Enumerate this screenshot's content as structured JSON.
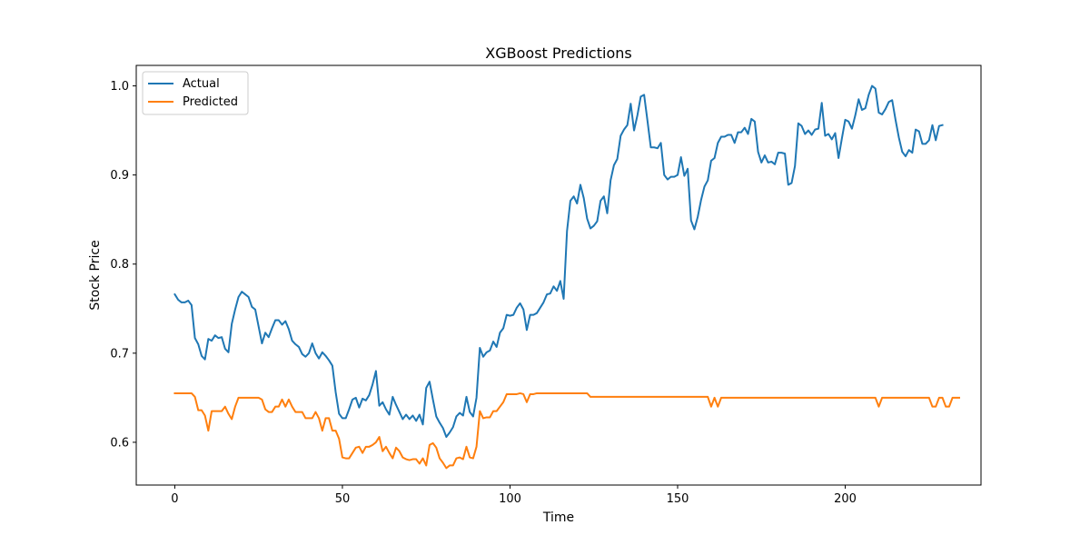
{
  "chart_data": {
    "type": "line",
    "title": "XGBoost Predictions",
    "xlabel": "Time",
    "ylabel": "Stock Price",
    "xlim": [
      -11.5,
      240.5
    ],
    "ylim": [
      0.552,
      1.023
    ],
    "xticks": [
      0,
      50,
      100,
      150,
      200
    ],
    "yticks": [
      0.6,
      0.7,
      0.8,
      0.9,
      1.0
    ],
    "xtick_labels": [
      "0",
      "50",
      "100",
      "150",
      "200"
    ],
    "ytick_labels": [
      "0.6",
      "0.7",
      "0.8",
      "0.9",
      "1.0"
    ],
    "grid": false,
    "legend_position": "top-left",
    "series": [
      {
        "name": "Actual",
        "color": "#1f77b4",
        "x_start": 0,
        "values": [
          0.766,
          0.76,
          0.757,
          0.757,
          0.759,
          0.754,
          0.717,
          0.71,
          0.697,
          0.693,
          0.716,
          0.714,
          0.72,
          0.717,
          0.718,
          0.705,
          0.701,
          0.733,
          0.749,
          0.763,
          0.769,
          0.766,
          0.763,
          0.752,
          0.749,
          0.73,
          0.711,
          0.723,
          0.718,
          0.728,
          0.737,
          0.737,
          0.732,
          0.736,
          0.727,
          0.714,
          0.71,
          0.707,
          0.699,
          0.696,
          0.7,
          0.711,
          0.7,
          0.694,
          0.701,
          0.697,
          0.692,
          0.686,
          0.656,
          0.632,
          0.627,
          0.627,
          0.637,
          0.648,
          0.65,
          0.639,
          0.649,
          0.647,
          0.653,
          0.665,
          0.68,
          0.641,
          0.645,
          0.637,
          0.631,
          0.651,
          0.642,
          0.634,
          0.626,
          0.631,
          0.626,
          0.63,
          0.624,
          0.631,
          0.62,
          0.661,
          0.668,
          0.648,
          0.629,
          0.622,
          0.616,
          0.606,
          0.611,
          0.617,
          0.629,
          0.633,
          0.63,
          0.651,
          0.634,
          0.629,
          0.65,
          0.706,
          0.696,
          0.701,
          0.703,
          0.713,
          0.707,
          0.723,
          0.728,
          0.743,
          0.742,
          0.743,
          0.751,
          0.756,
          0.749,
          0.726,
          0.743,
          0.743,
          0.745,
          0.751,
          0.757,
          0.766,
          0.767,
          0.775,
          0.77,
          0.781,
          0.761,
          0.837,
          0.871,
          0.876,
          0.868,
          0.889,
          0.874,
          0.851,
          0.84,
          0.843,
          0.848,
          0.871,
          0.876,
          0.857,
          0.894,
          0.911,
          0.918,
          0.944,
          0.951,
          0.956,
          0.98,
          0.95,
          0.967,
          0.988,
          0.99,
          0.961,
          0.931,
          0.931,
          0.93,
          0.936,
          0.9,
          0.895,
          0.898,
          0.898,
          0.9,
          0.92,
          0.899,
          0.907,
          0.849,
          0.839,
          0.853,
          0.872,
          0.887,
          0.894,
          0.916,
          0.919,
          0.936,
          0.943,
          0.943,
          0.945,
          0.945,
          0.936,
          0.948,
          0.948,
          0.953,
          0.946,
          0.963,
          0.96,
          0.926,
          0.914,
          0.922,
          0.914,
          0.915,
          0.912,
          0.925,
          0.925,
          0.924,
          0.889,
          0.891,
          0.91,
          0.958,
          0.955,
          0.946,
          0.95,
          0.945,
          0.951,
          0.952,
          0.981,
          0.944,
          0.946,
          0.94,
          0.947,
          0.919,
          0.941,
          0.962,
          0.96,
          0.952,
          0.967,
          0.985,
          0.973,
          0.975,
          0.99,
          1.0,
          0.997,
          0.97,
          0.968,
          0.974,
          0.982,
          0.984,
          0.962,
          0.942,
          0.926,
          0.921,
          0.928,
          0.925,
          0.951,
          0.949,
          0.935,
          0.935,
          0.939,
          0.956,
          0.939,
          0.955,
          0.956
        ]
      },
      {
        "name": "Predicted",
        "color": "#ff7f0e",
        "x_start": 0,
        "values": [
          0.655,
          0.655,
          0.655,
          0.655,
          0.655,
          0.655,
          0.651,
          0.636,
          0.636,
          0.63,
          0.613,
          0.635,
          0.635,
          0.635,
          0.635,
          0.64,
          0.632,
          0.626,
          0.64,
          0.65,
          0.65,
          0.65,
          0.65,
          0.65,
          0.65,
          0.65,
          0.648,
          0.637,
          0.634,
          0.634,
          0.64,
          0.64,
          0.648,
          0.64,
          0.648,
          0.64,
          0.634,
          0.634,
          0.634,
          0.627,
          0.627,
          0.627,
          0.634,
          0.627,
          0.613,
          0.627,
          0.627,
          0.613,
          0.613,
          0.604,
          0.583,
          0.582,
          0.582,
          0.588,
          0.594,
          0.595,
          0.588,
          0.595,
          0.595,
          0.597,
          0.6,
          0.606,
          0.59,
          0.595,
          0.588,
          0.582,
          0.594,
          0.59,
          0.583,
          0.581,
          0.58,
          0.581,
          0.581,
          0.576,
          0.582,
          0.574,
          0.597,
          0.599,
          0.594,
          0.582,
          0.577,
          0.571,
          0.574,
          0.574,
          0.582,
          0.583,
          0.581,
          0.595,
          0.583,
          0.582,
          0.595,
          0.635,
          0.627,
          0.628,
          0.628,
          0.635,
          0.635,
          0.64,
          0.645,
          0.654,
          0.654,
          0.654,
          0.654,
          0.655,
          0.654,
          0.645,
          0.654,
          0.654,
          0.655,
          0.655,
          0.655,
          0.655,
          0.655,
          0.655,
          0.655,
          0.655,
          0.655,
          0.655,
          0.655,
          0.655,
          0.655,
          0.655,
          0.655,
          0.655,
          0.651,
          0.651,
          0.651,
          0.651,
          0.651,
          0.651,
          0.651,
          0.651,
          0.651,
          0.651,
          0.651,
          0.651,
          0.651,
          0.651,
          0.651,
          0.651,
          0.651,
          0.651,
          0.651,
          0.651,
          0.651,
          0.651,
          0.651,
          0.651,
          0.651,
          0.651,
          0.651,
          0.651,
          0.651,
          0.651,
          0.651,
          0.651,
          0.651,
          0.651,
          0.651,
          0.651,
          0.64,
          0.65,
          0.64,
          0.65,
          0.65,
          0.65,
          0.65,
          0.65,
          0.65,
          0.65,
          0.65,
          0.65,
          0.65,
          0.65,
          0.65,
          0.65,
          0.65,
          0.65,
          0.65,
          0.65,
          0.65,
          0.65,
          0.65,
          0.65,
          0.65,
          0.65,
          0.65,
          0.65,
          0.65,
          0.65,
          0.65,
          0.65,
          0.65,
          0.65,
          0.65,
          0.65,
          0.65,
          0.65,
          0.65,
          0.65,
          0.65,
          0.65,
          0.65,
          0.65,
          0.65,
          0.65,
          0.65,
          0.65,
          0.65,
          0.65,
          0.64,
          0.65,
          0.65,
          0.65,
          0.65,
          0.65,
          0.65,
          0.65,
          0.65,
          0.65,
          0.65,
          0.65,
          0.65,
          0.65,
          0.65,
          0.65,
          0.64,
          0.64,
          0.65,
          0.65,
          0.64,
          0.64,
          0.65,
          0.65,
          0.65
        ]
      }
    ]
  }
}
